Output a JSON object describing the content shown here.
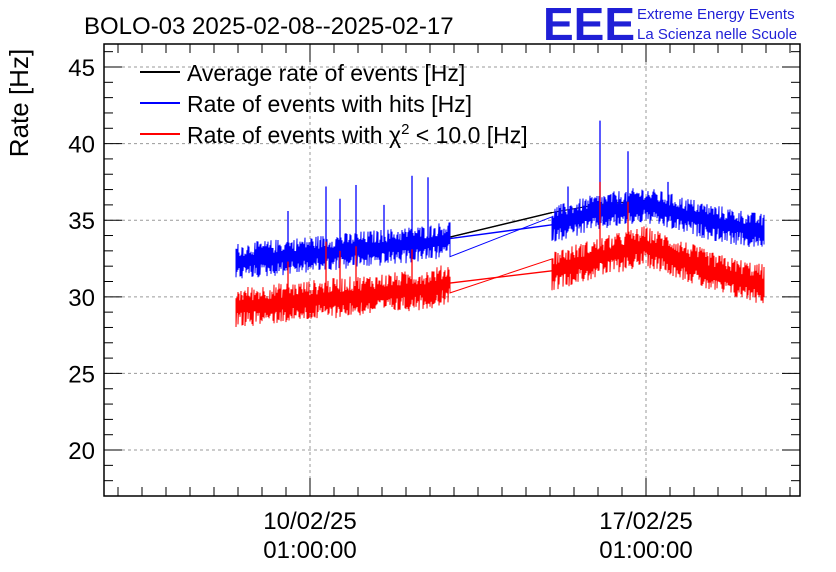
{
  "header": {
    "title": "BOLO-03 2025-02-08--2025-02-17",
    "logo_text": "EEE",
    "logo_line1": "Extreme Energy Events",
    "logo_line2": "La Scienza nelle Scuole"
  },
  "colors": {
    "average": "#000000",
    "hits": "#0000ff",
    "chi2": "#ff0000",
    "logo": "#1f1fd6"
  },
  "chart_data": {
    "type": "line",
    "ylabel": "Rate [Hz]",
    "ylim": [
      17,
      46.5
    ],
    "yticks": [
      20,
      25,
      30,
      35,
      40,
      45
    ],
    "xlim": [
      "2025-02-05 18:00",
      "2025-02-20 06:00"
    ],
    "xticks": [
      {
        "line1": "10/02/25",
        "line2": "01:00:00",
        "at": "2025-02-10 01:00"
      },
      {
        "line1": "17/02/25",
        "line2": "01:00:00",
        "at": "2025-02-17 01:00"
      }
    ],
    "grid": true,
    "legend_position": "top-left",
    "legend": {
      "average": "Average rate of events [Hz]",
      "hits": "Rate of events with hits [Hz]",
      "chi2_prefix": "Rate of events with ",
      "chi2_symbol": "χ",
      "chi2_sup": "2",
      "chi2_suffix": " < 10.0 [Hz]"
    },
    "series": [
      {
        "name": "Average rate of events [Hz]",
        "key": "average",
        "x": [
          "2025-02-08 12:00",
          "2025-02-09 12:00",
          "2025-02-10 12:00",
          "2025-02-11 12:00",
          "2025-02-12 12:00",
          "2025-02-12 23:00",
          "2025-02-15 02:00",
          "2025-02-16 00:00",
          "2025-02-17 00:00",
          "2025-02-17 12:00",
          "2025-02-18 12:00",
          "2025-02-19 12:00"
        ],
        "y": [
          32.5,
          32.7,
          33.0,
          33.3,
          33.7,
          33.9,
          35.5,
          36.0,
          36.3,
          35.8,
          35.0,
          34.5
        ]
      },
      {
        "name": "Rate of events with hits [Hz]",
        "key": "hits",
        "spread": 1.0,
        "x": [
          "2025-02-08 12:00",
          "2025-02-09 12:00",
          "2025-02-10 12:00",
          "2025-02-11 12:00",
          "2025-02-12 12:00",
          "2025-02-12 23:00",
          "2025-02-15 02:00",
          "2025-02-16 00:00",
          "2025-02-17 00:00",
          "2025-02-17 12:00",
          "2025-02-18 12:00",
          "2025-02-19 12:00"
        ],
        "y": [
          32.3,
          32.6,
          32.9,
          33.2,
          33.5,
          33.8,
          34.7,
          35.5,
          36.0,
          35.6,
          34.8,
          34.2
        ],
        "spikes": [
          {
            "x": "2025-02-09 14:00",
            "y": 35.6
          },
          {
            "x": "2025-02-10 09:00",
            "y": 37.2
          },
          {
            "x": "2025-02-10 16:00",
            "y": 36.4
          },
          {
            "x": "2025-02-11 00:00",
            "y": 37.3
          },
          {
            "x": "2025-02-11 14:00",
            "y": 36.0
          },
          {
            "x": "2025-02-12 04:00",
            "y": 37.9
          },
          {
            "x": "2025-02-12 12:00",
            "y": 37.8
          },
          {
            "x": "2025-02-15 10:00",
            "y": 37.2
          },
          {
            "x": "2025-02-16 02:00",
            "y": 41.5
          },
          {
            "x": "2025-02-16 16:00",
            "y": 39.5
          },
          {
            "x": "2025-02-17 12:00",
            "y": 37.5
          }
        ]
      },
      {
        "name": "Rate of events with χ2 < 10.0 [Hz]",
        "key": "chi2",
        "spread": 1.1,
        "x": [
          "2025-02-08 12:00",
          "2025-02-09 12:00",
          "2025-02-10 12:00",
          "2025-02-11 12:00",
          "2025-02-12 12:00",
          "2025-02-12 23:00",
          "2025-02-15 02:00",
          "2025-02-16 00:00",
          "2025-02-17 00:00",
          "2025-02-17 12:00",
          "2025-02-18 12:00",
          "2025-02-19 12:00"
        ],
        "y": [
          29.3,
          29.6,
          29.9,
          30.2,
          30.5,
          30.9,
          31.7,
          32.5,
          33.3,
          32.8,
          31.5,
          30.8
        ],
        "spikes": [
          {
            "x": "2025-02-09 14:00",
            "y": 32.3
          },
          {
            "x": "2025-02-10 09:00",
            "y": 33.6
          },
          {
            "x": "2025-02-10 16:00",
            "y": 33.0
          },
          {
            "x": "2025-02-11 00:00",
            "y": 33.3
          },
          {
            "x": "2025-02-12 04:00",
            "y": 33.1
          },
          {
            "x": "2025-02-16 02:00",
            "y": 37.5
          },
          {
            "x": "2025-02-16 16:00",
            "y": 36.2
          }
        ]
      }
    ]
  }
}
